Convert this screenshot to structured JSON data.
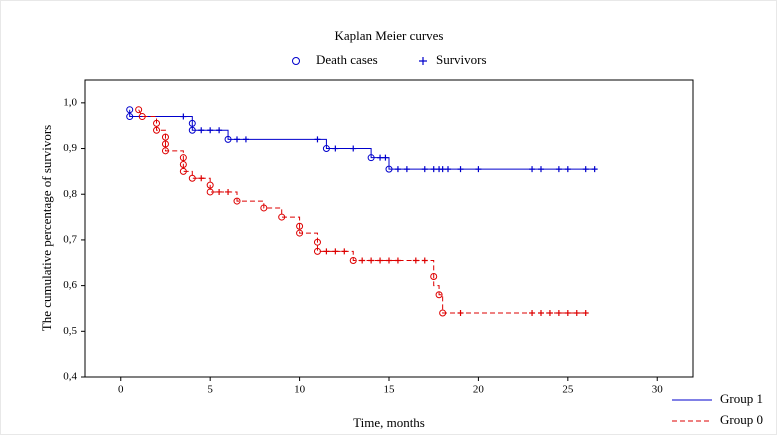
{
  "chart_data": {
    "type": "kaplan-meier",
    "title": "Kaplan Meier curves",
    "xlabel": "Time, months",
    "ylabel": "The cumulative percentage of survivors",
    "marker_legend": [
      "Death cases",
      "Survivors"
    ],
    "marker_color": "#0000cc",
    "xlim": [
      -2,
      32
    ],
    "ylim": [
      0.4,
      1.05
    ],
    "xticks": [
      0,
      5,
      10,
      15,
      20,
      25,
      30
    ],
    "yticks": [
      {
        "value": 0.4,
        "label": "0,4"
      },
      {
        "value": 0.5,
        "label": "0,5"
      },
      {
        "value": 0.6,
        "label": "0,6"
      },
      {
        "value": 0.7,
        "label": "0,7"
      },
      {
        "value": 0.8,
        "label": "0,8"
      },
      {
        "value": 0.9,
        "label": "0,9"
      },
      {
        "value": 1.0,
        "label": "1,0"
      }
    ],
    "series": [
      {
        "name": "Group 1",
        "color": "#0000cc",
        "dashed": false,
        "x": [
          0.5,
          0.5,
          4,
          4,
          6,
          6,
          11.5,
          11.5,
          14,
          14,
          15,
          15,
          26.5
        ],
        "values": [
          0.985,
          0.97,
          0.97,
          0.94,
          0.94,
          0.92,
          0.92,
          0.9,
          0.9,
          0.88,
          0.88,
          0.855,
          0.855
        ],
        "deaths": {
          "x": [
            0.5,
            0.5,
            4,
            4,
            6,
            11.5,
            14,
            15
          ],
          "values": [
            0.985,
            0.97,
            0.955,
            0.94,
            0.92,
            0.9,
            0.88,
            0.855
          ]
        },
        "survivors": {
          "x": [
            3.5,
            4.5,
            5,
            5.5,
            6.5,
            7,
            11,
            12,
            13,
            14.5,
            14.8,
            15.5,
            16,
            17,
            17.5,
            17.8,
            18,
            18.3,
            19,
            20,
            23,
            23.5,
            24.5,
            25,
            26,
            26.5
          ],
          "values": [
            0.97,
            0.94,
            0.94,
            0.94,
            0.92,
            0.92,
            0.92,
            0.9,
            0.9,
            0.88,
            0.88,
            0.855,
            0.855,
            0.855,
            0.855,
            0.855,
            0.855,
            0.855,
            0.855,
            0.855,
            0.855,
            0.855,
            0.855,
            0.855,
            0.855,
            0.855
          ]
        }
      },
      {
        "name": "Group 0",
        "color": "#dd0000",
        "dashed": true,
        "x": [
          1,
          1.2,
          2,
          2,
          2.5,
          2.5,
          3.5,
          3.5,
          4,
          4,
          5,
          5,
          6.5,
          6.5,
          8,
          8,
          9,
          9,
          10,
          10,
          11,
          11,
          13,
          13,
          17.5,
          17.5,
          17.8,
          17.8,
          18,
          18,
          26
        ],
        "values": [
          0.985,
          0.97,
          0.97,
          0.94,
          0.94,
          0.895,
          0.895,
          0.85,
          0.85,
          0.835,
          0.835,
          0.805,
          0.805,
          0.785,
          0.785,
          0.77,
          0.77,
          0.75,
          0.75,
          0.715,
          0.715,
          0.675,
          0.675,
          0.655,
          0.655,
          0.6,
          0.6,
          0.58,
          0.58,
          0.54,
          0.54
        ],
        "deaths": {
          "x": [
            1,
            1.2,
            2,
            2,
            2.5,
            2.5,
            2.5,
            3.5,
            3.5,
            3.5,
            4,
            5,
            5,
            6.5,
            8,
            9,
            10,
            10,
            11,
            11,
            13,
            17.5,
            17.8,
            18
          ],
          "values": [
            0.985,
            0.97,
            0.955,
            0.94,
            0.925,
            0.91,
            0.895,
            0.88,
            0.865,
            0.85,
            0.835,
            0.82,
            0.805,
            0.785,
            0.77,
            0.75,
            0.73,
            0.715,
            0.695,
            0.675,
            0.655,
            0.62,
            0.58,
            0.54
          ]
        },
        "survivors": {
          "x": [
            4.5,
            5.5,
            6,
            11.5,
            12,
            12.5,
            13.5,
            14,
            14.5,
            15,
            15.5,
            16.5,
            17,
            19,
            23,
            23.5,
            24,
            24.5,
            25,
            25.5,
            26
          ],
          "values": [
            0.835,
            0.805,
            0.805,
            0.675,
            0.675,
            0.675,
            0.655,
            0.655,
            0.655,
            0.655,
            0.655,
            0.655,
            0.655,
            0.54,
            0.54,
            0.54,
            0.54,
            0.54,
            0.54,
            0.54,
            0.54
          ]
        }
      }
    ]
  }
}
